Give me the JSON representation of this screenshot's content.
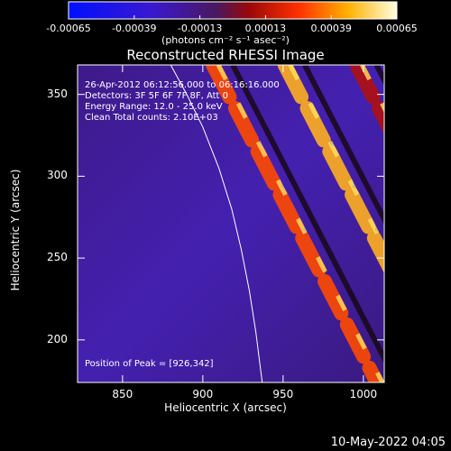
{
  "chart_data": {
    "type": "heatmap",
    "title": "Reconstructed RHESSI Image",
    "xlabel": "Heliocentric X (arcsec)",
    "ylabel": "Heliocentric Y (arcsec)",
    "xlim": [
      822,
      1013
    ],
    "ylim": [
      174,
      368
    ],
    "x_ticks": [
      850,
      900,
      950,
      1000
    ],
    "y_ticks": [
      200,
      250,
      300,
      350
    ],
    "colorbar": {
      "ticks": [
        "-0.00065",
        "-0.00039",
        "-0.00013",
        "0.00013",
        "0.00039",
        "0.00065"
      ],
      "units": "(photons cm⁻² s⁻¹ asec⁻²)",
      "range": [
        -0.00065,
        0.00065
      ]
    },
    "info": {
      "time": "26-Apr-2012 06:12:56.000 to 06:16:16.000",
      "detectors": "Detectors: 3F 5F 6F 7F 8F, Att 0",
      "energy": "Energy Range: 12.0 - 25.0 keV",
      "clean": "Clean    Total counts: 2.10E+03"
    },
    "peak_label": "Position of Peak = [926,342]",
    "peak": [
      926,
      342
    ],
    "limb_arc": [
      [
        880,
        368
      ],
      [
        890,
        350
      ],
      [
        900,
        330
      ],
      [
        910,
        305
      ],
      [
        918,
        280
      ],
      [
        924,
        255
      ],
      [
        929,
        230
      ],
      [
        933,
        205
      ],
      [
        937,
        174
      ]
    ],
    "stripe_lines": [
      [
        -1.9,
        2090
      ],
      [
        -1.9,
        2175
      ],
      [
        -1.9,
        2260
      ],
      [
        -1.9,
        2345
      ],
      [
        -1.9,
        2430
      ],
      [
        -1.9,
        2515
      ]
    ]
  },
  "datestamp": "10-May-2022 04:05"
}
